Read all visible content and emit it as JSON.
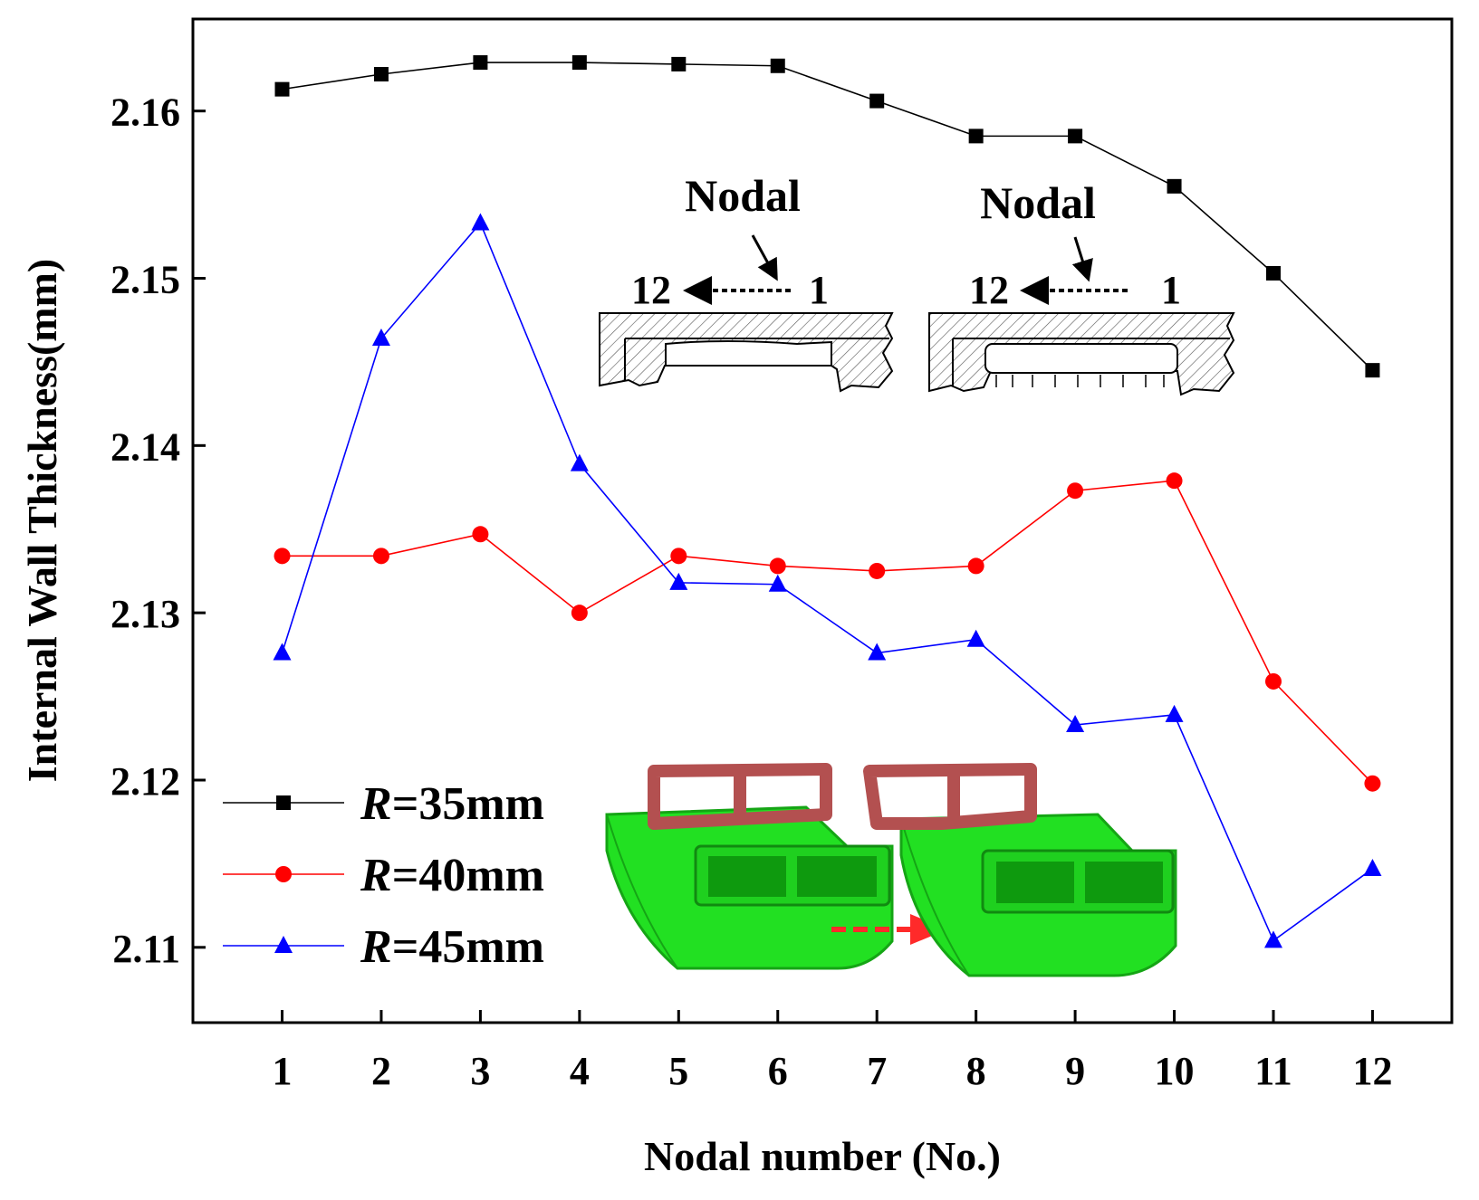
{
  "chart_data": {
    "type": "line",
    "title": "",
    "xlabel": "Nodal number (No.)",
    "ylabel": "Internal Wall Thickness(mm)",
    "x": [
      1,
      2,
      3,
      4,
      5,
      6,
      7,
      8,
      9,
      10,
      11,
      12
    ],
    "xticks": [
      "1",
      "2",
      "3",
      "4",
      "5",
      "6",
      "7",
      "8",
      "9",
      "10",
      "11",
      "12"
    ],
    "xlim": [
      0.1,
      12.8
    ],
    "ylim": [
      2.1055,
      2.1655
    ],
    "yticks": [
      "2.11",
      "2.12",
      "2.13",
      "2.14",
      "2.15",
      "2.16"
    ],
    "ytick_values": [
      2.11,
      2.12,
      2.13,
      2.14,
      2.15,
      2.16
    ],
    "grid": false,
    "legend_position": "bottom-left",
    "series": [
      {
        "name_italic": "R",
        "name_rest": "=35mm",
        "color": "#000000",
        "marker": "square",
        "values": [
          2.1613,
          2.1622,
          2.1629,
          2.1629,
          2.1628,
          2.1627,
          2.1606,
          2.1585,
          2.1585,
          2.1555,
          2.1503,
          2.1445
        ]
      },
      {
        "name_italic": "R",
        "name_rest": "=40mm",
        "color": "#ff0000",
        "marker": "circle",
        "values": [
          2.1334,
          2.1334,
          2.1347,
          2.13,
          2.1334,
          2.1328,
          2.1325,
          2.1328,
          2.1373,
          2.1379,
          2.1259,
          2.1198
        ]
      },
      {
        "name_italic": "R",
        "name_rest": "=45mm",
        "color": "#0000ff",
        "marker": "triangle",
        "values": [
          2.1276,
          2.1464,
          2.1533,
          2.1389,
          2.1318,
          2.1317,
          2.1276,
          2.1284,
          2.1233,
          2.1239,
          2.1104,
          2.1147
        ]
      }
    ],
    "annotations": {
      "inset_left": {
        "title": "Nodal",
        "from": "12",
        "to": "1"
      },
      "inset_right": {
        "title": "Nodal",
        "from": "12",
        "to": "1"
      }
    }
  }
}
